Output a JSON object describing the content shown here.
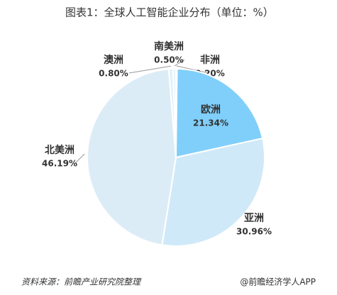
{
  "chart_data": {
    "type": "pie",
    "title": "图表1：全球人工智能企业分布（单位：%）",
    "categories": [
      "非洲",
      "欧洲",
      "亚洲",
      "北美洲",
      "澳洲",
      "南美洲"
    ],
    "values": [
      0.2,
      21.34,
      30.96,
      46.19,
      0.8,
      0.5
    ],
    "value_labels": [
      "0.20%",
      "21.34%",
      "30.96%",
      "46.19%",
      "0.80%",
      "0.50%"
    ],
    "colors": [
      "#e3f1fa",
      "#80cffa",
      "#d0e9f9",
      "#dcecf6",
      "#e3f1fa",
      "#e3f1fa"
    ],
    "source": "资料来源：前瞻产业研究院整理",
    "footer": "@前瞻经济学人APP"
  }
}
